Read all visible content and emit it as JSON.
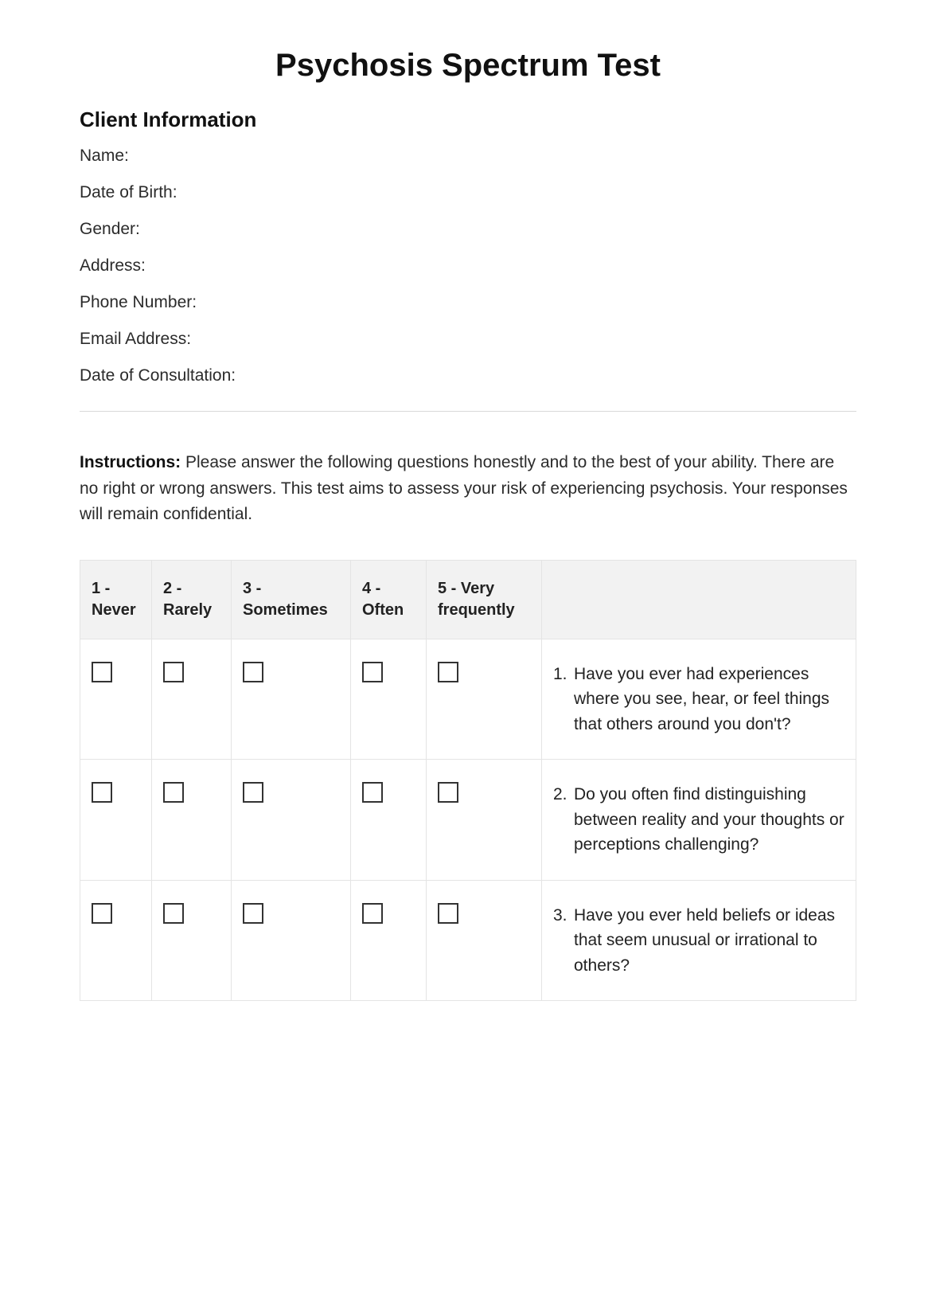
{
  "title": "Psychosis Spectrum Test",
  "clientSection": {
    "heading": "Client Information",
    "fields": [
      "Name:",
      "Date of Birth:",
      "Gender:",
      "Address:",
      "Phone Number:",
      "Email Address:",
      "Date of Consultation:"
    ]
  },
  "instructions": {
    "label": "Instructions:",
    "text": " Please answer the following questions honestly and to the best of your ability. There are no right or wrong answers. This test aims to assess your risk of experiencing psychosis. Your responses will remain confidential."
  },
  "rating": {
    "headers": [
      "1 - Never",
      "2 - Rarely",
      "3 - Sometimes",
      "4 - Often",
      "5 - Very frequently",
      ""
    ],
    "questions": [
      {
        "num": "1.",
        "text": "Have you ever had experiences where you see, hear, or feel things that others around you don't?"
      },
      {
        "num": "2.",
        "text": "Do you often find distinguishing between reality and your thoughts or perceptions challenging?"
      },
      {
        "num": "3.",
        "text": "Have you ever held beliefs or ideas that seem unusual or irrational to others?"
      }
    ]
  },
  "colors": {
    "text": "#222222",
    "headingText": "#111111",
    "divider": "#d9d9d9",
    "tableBorder": "#e4e4e4",
    "tableHeaderBg": "#f2f2f2",
    "checkboxBorder": "#333333",
    "background": "#ffffff"
  }
}
